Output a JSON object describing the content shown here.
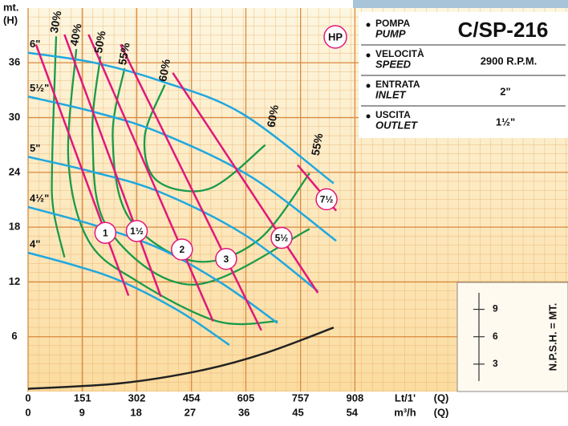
{
  "chart_data": {
    "type": "line",
    "y_unit": "mt.",
    "y_label": "(H)",
    "x_label": "Lt/1'",
    "x_label_q": "(Q)",
    "x2_label": "m³/h",
    "x2_label_q": "(Q)",
    "power_label": "HP",
    "xlim": [
      0,
      1500
    ],
    "x2lim": [
      0,
      90
    ],
    "ylim": [
      0,
      42
    ],
    "xticks": [
      0,
      151,
      302,
      454,
      605,
      757,
      908
    ],
    "x2ticks": [
      0,
      9,
      18,
      27,
      36,
      45,
      54
    ],
    "yticks": [
      6,
      12,
      18,
      24,
      30,
      36
    ],
    "grid": true,
    "impellers": [
      {
        "name": "6\"",
        "color": "#1fa8e0",
        "x": [
          0,
          185,
          369,
          592,
          849
        ],
        "values": [
          37.1,
          36.0,
          34.0,
          30.5,
          22.8
        ]
      },
      {
        "name": "5½\"",
        "color": "#1fa8e0",
        "x": [
          0,
          185,
          369,
          620,
          856
        ],
        "values": [
          32.3,
          30.6,
          28.3,
          23.5,
          16.5
        ]
      },
      {
        "name": "5\"",
        "color": "#1fa8e0",
        "x": [
          0,
          185,
          369,
          600,
          805
        ],
        "values": [
          25.7,
          24.0,
          21.8,
          17.2,
          11.0
        ]
      },
      {
        "name": "4½\"",
        "color": "#1fa8e0",
        "x": [
          0,
          185,
          369,
          540,
          693
        ],
        "values": [
          20.2,
          18.2,
          15.6,
          11.8,
          7.5
        ]
      },
      {
        "name": "4\"",
        "color": "#1fa8e0",
        "x": [
          0,
          130,
          257,
          420,
          559
        ],
        "values": [
          15.2,
          13.8,
          12.1,
          8.8,
          5.1
        ]
      }
    ],
    "efficiency": [
      {
        "name": "30%",
        "color": "#1a9a4a",
        "x": [
          78,
          67,
          70,
          101
        ],
        "values": [
          38.9,
          25.3,
          20.0,
          14.7
        ]
      },
      {
        "name": "40%",
        "color": "#1a9a4a",
        "x": [
          134,
          112,
          168,
          302,
          525,
          693
        ],
        "values": [
          37.5,
          25.3,
          16.5,
          12.1,
          7.7,
          7.7
        ]
      },
      {
        "name": "50%",
        "color": "#1a9a4a",
        "x": [
          201,
          179,
          223,
          458,
          782
        ],
        "values": [
          36.7,
          27.9,
          17.8,
          11.7,
          17.8
        ]
      },
      {
        "name": "55%",
        "color": "#1a9a4a",
        "x": [
          268,
          235,
          279,
          458,
          637,
          782
        ],
        "values": [
          35.4,
          27.9,
          19.1,
          14.3,
          16.5,
          23.9
        ]
      },
      {
        "name": "60%",
        "color": "#1a9a4a",
        "x": [
          380,
          324,
          358,
          503,
          659
        ],
        "values": [
          33.6,
          27.9,
          23.1,
          22.2,
          27.0
        ]
      }
    ],
    "power": [
      {
        "name": "1",
        "color": "#e0187a",
        "x": [
          22,
          279
        ],
        "values": [
          38.0,
          10.5
        ]
      },
      {
        "name": "1½",
        "color": "#e0187a",
        "x": [
          101,
          369
        ],
        "values": [
          39.1,
          10.4
        ]
      },
      {
        "name": "2",
        "color": "#e0187a",
        "x": [
          168,
          514
        ],
        "values": [
          39.1,
          7.7
        ]
      },
      {
        "name": "3",
        "color": "#e0187a",
        "x": [
          257,
          648
        ],
        "values": [
          38.0,
          6.7
        ]
      },
      {
        "name": "5½",
        "color": "#e0187a",
        "x": [
          402,
          805
        ],
        "values": [
          34.9,
          10.8
        ]
      },
      {
        "name": "7½",
        "color": "#e0187a",
        "x": [
          749,
          856
        ],
        "values": [
          24.8,
          19.8
        ]
      }
    ],
    "npsh": {
      "color": "#222",
      "label": "N.P.S.H. = MT.",
      "ticks": [
        3,
        6,
        9
      ],
      "x": [
        0,
        257,
        480,
        659,
        849
      ],
      "values": [
        0.3,
        0.9,
        2.3,
        4.2,
        7.0
      ]
    },
    "info": [
      {
        "label": "POMPA",
        "label_en": "PUMP",
        "value": "C/SP-216"
      },
      {
        "label": "VELOCITÀ",
        "label_en": "SPEED",
        "value": "2900 R.P.M."
      },
      {
        "label": "ENTRATA",
        "label_en": "INLET",
        "value": "2\""
      },
      {
        "label": "USCITA",
        "label_en": "OUTLET",
        "value": "1½\""
      }
    ]
  }
}
